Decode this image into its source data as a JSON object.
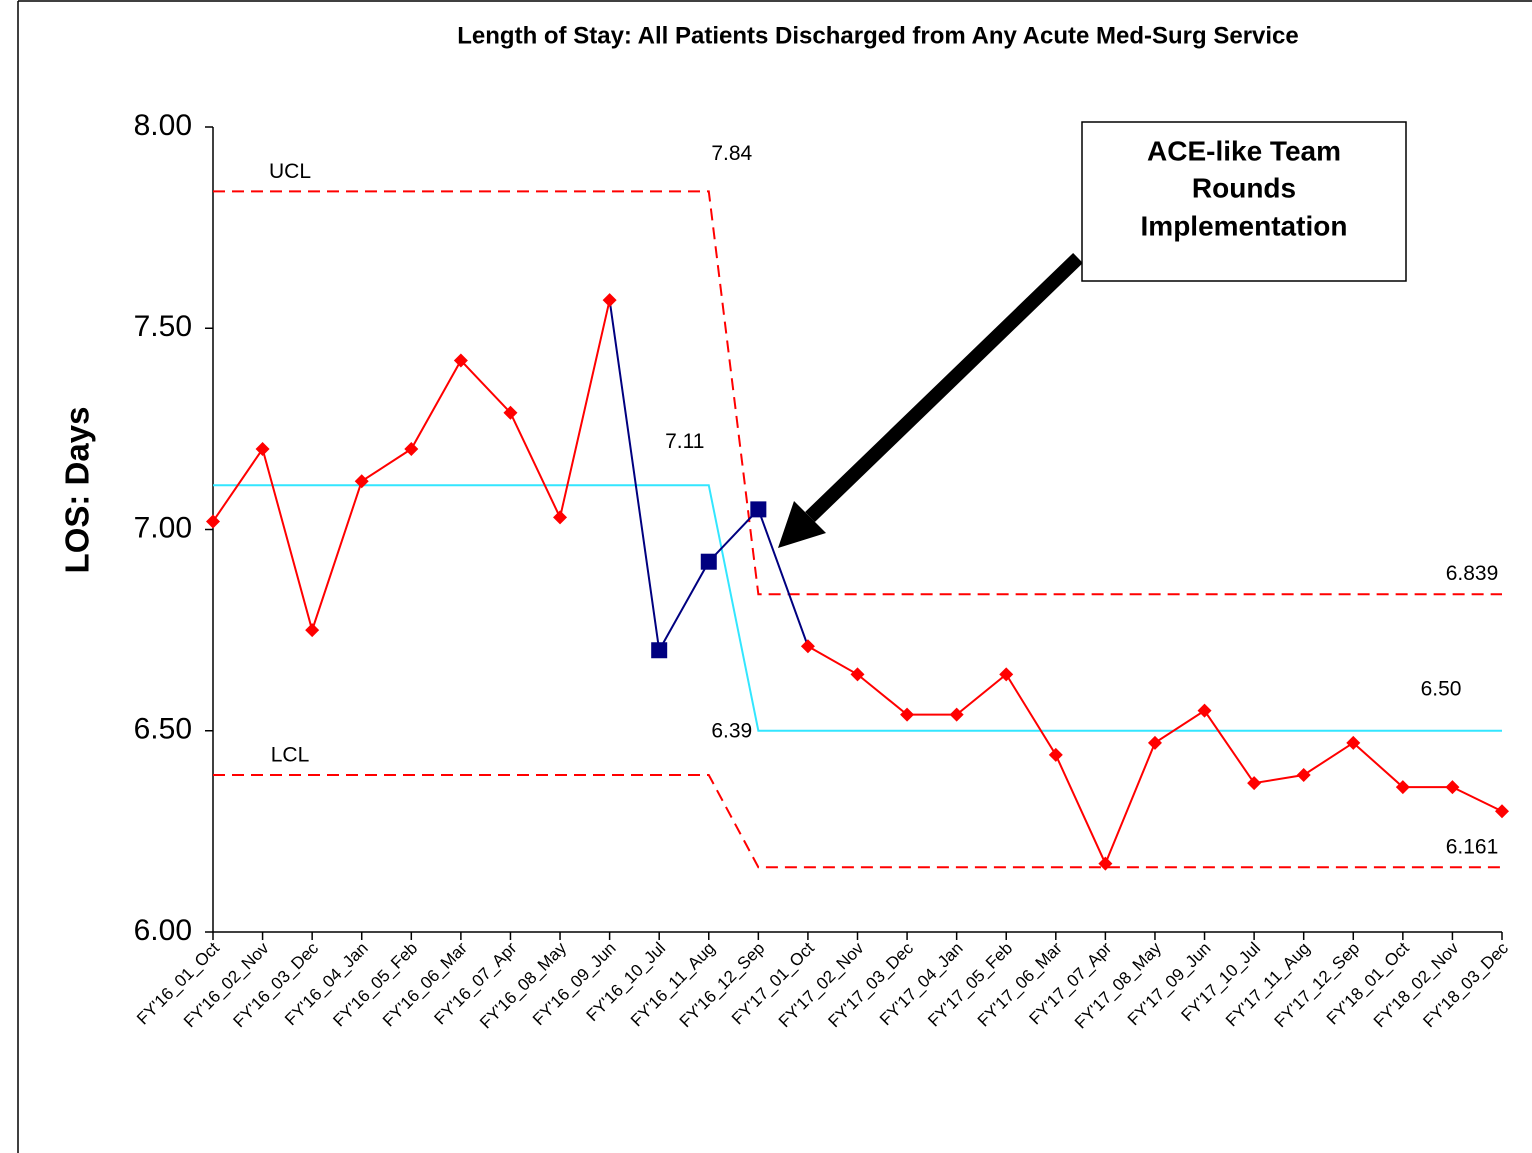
{
  "chart_data": {
    "type": "line",
    "title": "Length of Stay: All Patients Discharged from Any Acute Med-Surg Service",
    "y_label": "LOS: Days",
    "annotation": [
      "ACE-like Team",
      "Rounds",
      "Implementation"
    ],
    "categories": [
      "FY'16_01_Oct",
      "FY'16_02_Nov",
      "FY'16_03_Dec",
      "FY'16_04_Jan",
      "FY'16_05_Feb",
      "FY'16_06_Mar",
      "FY'16_07_Apr",
      "FY'16_08_May",
      "FY'16_09_Jun",
      "FY'16_10_Jul",
      "FY'16_11_Aug",
      "FY'16_12_Sep",
      "FY'17_01_Oct",
      "FY'17_02_Nov",
      "FY'17_03_Dec",
      "FY'17_04_Jan",
      "FY'17_05_Feb",
      "FY'17_06_Mar",
      "FY'17_07_Apr",
      "FY'17_08_May",
      "FY'17_09_Jun",
      "FY'17_10_Jul",
      "FY'17_11_Aug",
      "FY'17_12_Sep",
      "FY'18_01_Oct",
      "FY'18_02_Nov",
      "FY'18_03_Dec"
    ],
    "ylim": [
      6,
      8
    ],
    "yticks": [
      {
        "value": 6,
        "label": "6.00"
      },
      {
        "value": 6.5,
        "label": "6.50"
      },
      {
        "value": 7,
        "label": "7.00"
      },
      {
        "value": 7.5,
        "label": "7.50"
      },
      {
        "value": 8,
        "label": "8.00"
      }
    ],
    "grid": false,
    "series": [
      {
        "color": "#ff0000",
        "marker": "diamond",
        "dashed": false,
        "values": [
          7.02,
          7.2,
          6.75,
          7.12,
          7.2,
          7.42,
          7.29,
          7.03,
          7.57,
          null,
          null,
          null,
          6.71,
          6.64,
          6.54,
          6.54,
          6.64,
          6.44,
          6.17,
          6.47,
          6.55,
          6.37,
          6.39,
          6.47,
          6.36,
          6.36,
          6.3
        ]
      },
      {
        "color": "#000080",
        "marker": "square",
        "dashed": false,
        "values": [
          null,
          null,
          null,
          null,
          null,
          null,
          null,
          null,
          7.57,
          6.7,
          6.92,
          7.05,
          6.71,
          null,
          null,
          null,
          null,
          null,
          null,
          null,
          null,
          null,
          null,
          null,
          null,
          null,
          null
        ]
      },
      {
        "name": "UCL",
        "color": "#ff0000",
        "marker": null,
        "dashed": true,
        "values": [
          7.84,
          7.84,
          7.84,
          7.84,
          7.84,
          7.84,
          7.84,
          7.84,
          7.84,
          7.84,
          7.84,
          6.839,
          6.839,
          6.839,
          6.839,
          6.839,
          6.839,
          6.839,
          6.839,
          6.839,
          6.839,
          6.839,
          6.839,
          6.839,
          6.839,
          6.839,
          6.839
        ],
        "value_labels": [
          null,
          null,
          null,
          null,
          null,
          null,
          null,
          null,
          null,
          null,
          "7.84",
          null,
          null,
          null,
          null,
          null,
          null,
          null,
          null,
          null,
          null,
          null,
          null,
          null,
          null,
          null,
          "6.839"
        ]
      },
      {
        "color": "#33e6ff",
        "marker": null,
        "dashed": false,
        "values": [
          7.11,
          7.11,
          7.11,
          7.11,
          7.11,
          7.11,
          7.11,
          7.11,
          7.11,
          7.11,
          7.11,
          6.5,
          6.5,
          6.5,
          6.5,
          6.5,
          6.5,
          6.5,
          6.5,
          6.5,
          6.5,
          6.5,
          6.5,
          6.5,
          6.5,
          6.5,
          6.5
        ],
        "value_labels": [
          null,
          null,
          null,
          null,
          null,
          null,
          null,
          null,
          null,
          null,
          "7.11",
          null,
          null,
          null,
          null,
          null,
          null,
          null,
          null,
          null,
          null,
          null,
          null,
          null,
          null,
          null,
          "6.50"
        ]
      },
      {
        "name": "LCL",
        "color": "#ff0000",
        "marker": null,
        "dashed": true,
        "values": [
          6.39,
          6.39,
          6.39,
          6.39,
          6.39,
          6.39,
          6.39,
          6.39,
          6.39,
          6.39,
          6.39,
          6.161,
          6.161,
          6.161,
          6.161,
          6.161,
          6.161,
          6.161,
          6.161,
          6.161,
          6.161,
          6.161,
          6.161,
          6.161,
          6.161,
          6.161,
          6.161
        ],
        "value_labels": [
          null,
          null,
          null,
          null,
          null,
          null,
          null,
          null,
          null,
          null,
          "6.39",
          null,
          null,
          null,
          null,
          null,
          null,
          null,
          null,
          null,
          null,
          null,
          null,
          null,
          null,
          null,
          "6.161"
        ]
      }
    ]
  }
}
